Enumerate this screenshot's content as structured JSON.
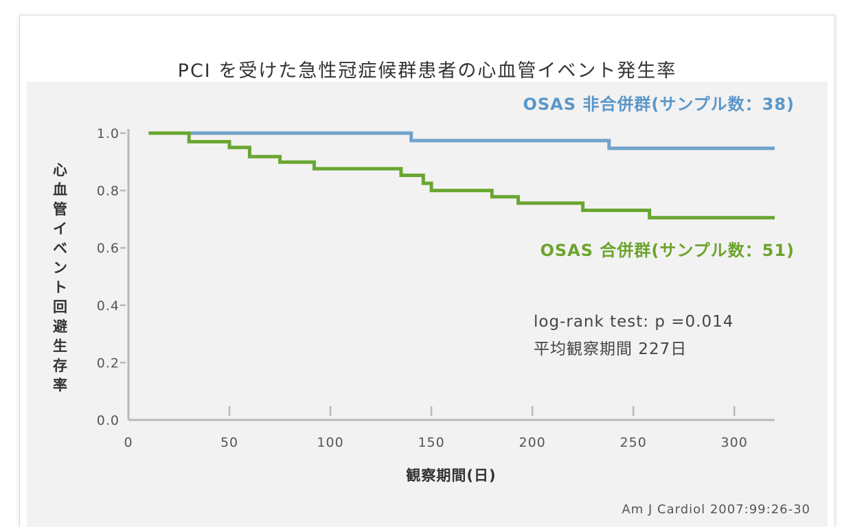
{
  "chart_data": {
    "type": "line",
    "step": true,
    "title": "PCI を受けた急性冠症候群患者の心血管イベント発生率",
    "xlabel": "観察期間(日)",
    "ylabel": "心血管イベント回避生存率",
    "xlim": [
      0,
      320
    ],
    "ylim": [
      0,
      1.0
    ],
    "xticks": [
      "0",
      "50",
      "100",
      "150",
      "200",
      "250",
      "300"
    ],
    "yticks": [
      "0.0",
      "0.2",
      "0.4",
      "0.6",
      "0.8",
      "1.0"
    ],
    "grid": false,
    "series": [
      {
        "name": "OSAS 非合併群(サンプル数：38)",
        "color": "#6fa3cd",
        "x": [
          10,
          140,
          238,
          320
        ],
        "y": [
          1.0,
          0.974,
          0.947,
          0.947
        ]
      },
      {
        "name": "OSAS 合併群(サンプル数：51)",
        "color": "#6aa631",
        "x": [
          10,
          30,
          50,
          60,
          75,
          92,
          135,
          146,
          150,
          180,
          193,
          225,
          258,
          320
        ],
        "y": [
          1.0,
          0.97,
          0.95,
          0.918,
          0.899,
          0.876,
          0.853,
          0.825,
          0.8,
          0.778,
          0.756,
          0.731,
          0.705,
          0.705
        ]
      }
    ],
    "annotations": [
      "log-rank test: p =0.014",
      "平均観察期間 227日"
    ]
  },
  "source": "Am J Cardiol 2007:99:26-30"
}
